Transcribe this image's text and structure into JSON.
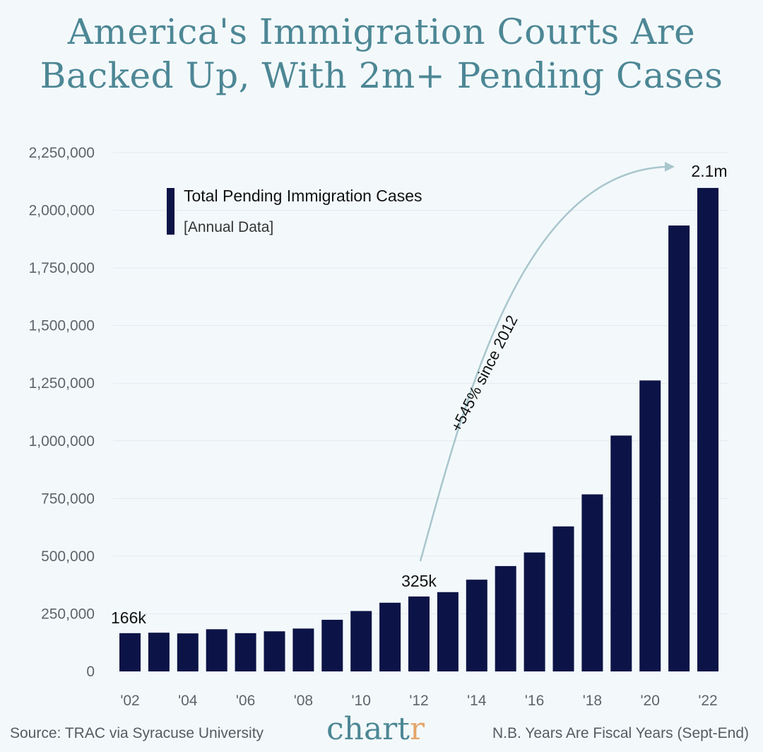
{
  "title_lines": [
    "America's Immigration Courts Are",
    "Backed Up, With 2m+ Pending Cases"
  ],
  "footer": {
    "source": "Source: TRAC via Syracuse University",
    "brand_main": "chart",
    "brand_accent": "r",
    "note": "N.B. Years Are Fiscal Years (Sept-End)"
  },
  "colors": {
    "bar": "#0c1447",
    "title": "#4d8795",
    "arrow": "#a9c6cd",
    "background": "#f3f9fb",
    "grid": "#e2eaee",
    "axis_text": "#5d646b"
  },
  "chart_data": {
    "type": "bar",
    "categories": [
      "2002",
      "2003",
      "2004",
      "2005",
      "2006",
      "2007",
      "2008",
      "2009",
      "2010",
      "2011",
      "2012",
      "2013",
      "2014",
      "2015",
      "2016",
      "2017",
      "2018",
      "2019",
      "2020",
      "2021",
      "2022"
    ],
    "x_tick_labels": [
      "'02",
      "",
      "'04",
      "",
      "'06",
      "",
      "'08",
      "",
      "'10",
      "",
      "'12",
      "",
      "'14",
      "",
      "'16",
      "",
      "'18",
      "",
      "'20",
      "",
      "'22"
    ],
    "series": [
      {
        "name": "Total Pending Immigration Cases",
        "values": [
          166000,
          168000,
          165000,
          183000,
          166000,
          174000,
          186000,
          224000,
          262000,
          298000,
          325000,
          344000,
          398000,
          457000,
          516000,
          629000,
          768000,
          1023000,
          1262000,
          1934000,
          2097000
        ]
      }
    ],
    "legend": {
      "label": "Total Pending Immigration Cases",
      "sublabel": "[Annual Data]",
      "position": "top-left"
    },
    "ylim": [
      0,
      2250000
    ],
    "y_ticks": [
      0,
      250000,
      500000,
      750000,
      1000000,
      1250000,
      1500000,
      1750000,
      2000000,
      2250000
    ],
    "y_tick_labels": [
      "0",
      "250,000",
      "500,000",
      "750,000",
      "1,000,000",
      "1,250,000",
      "1,500,000",
      "1,750,000",
      "2,000,000",
      "2,250,000"
    ],
    "grid": true,
    "annotations": [
      {
        "text": "166k",
        "category": "2002"
      },
      {
        "text": "325k",
        "category": "2012"
      },
      {
        "text": "2.1m",
        "category": "2022"
      }
    ],
    "arrow_annotation": {
      "text": "+545% since 2012",
      "from": "2012",
      "to": "2022"
    }
  }
}
